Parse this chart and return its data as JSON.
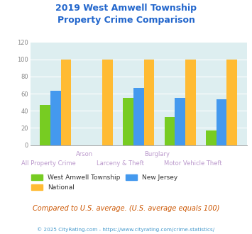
{
  "title": "2019 West Amwell Township\nProperty Crime Comparison",
  "categories": [
    "All Property Crime",
    "Arson",
    "Larceny & Theft",
    "Burglary",
    "Motor Vehicle Theft"
  ],
  "west_amwell": [
    47,
    0,
    55,
    33,
    17
  ],
  "new_jersey": [
    63,
    0,
    67,
    55,
    53
  ],
  "national": [
    100,
    100,
    100,
    100,
    100
  ],
  "bar_colors": {
    "west_amwell": "#77cc22",
    "new_jersey": "#4499ee",
    "national": "#ffbb33"
  },
  "ylim": [
    0,
    120
  ],
  "yticks": [
    0,
    20,
    40,
    60,
    80,
    100,
    120
  ],
  "plot_bg": "#ddeef0",
  "title_color": "#2266cc",
  "label_color": "#bb99cc",
  "subtitle_text": "Compared to U.S. average. (U.S. average equals 100)",
  "subtitle_color": "#cc5500",
  "footer_text": "© 2025 CityRating.com - https://www.cityrating.com/crime-statistics/",
  "footer_color": "#4499cc",
  "legend_labels": [
    "West Amwell Township",
    "National",
    "New Jersey"
  ],
  "x_label_top": [
    "",
    "Arson",
    "",
    "Burglary",
    ""
  ],
  "x_label_bottom": [
    "All Property Crime",
    "",
    "Larceny & Theft",
    "",
    "Motor Vehicle Theft"
  ],
  "figsize": [
    3.55,
    3.3
  ],
  "dpi": 100
}
